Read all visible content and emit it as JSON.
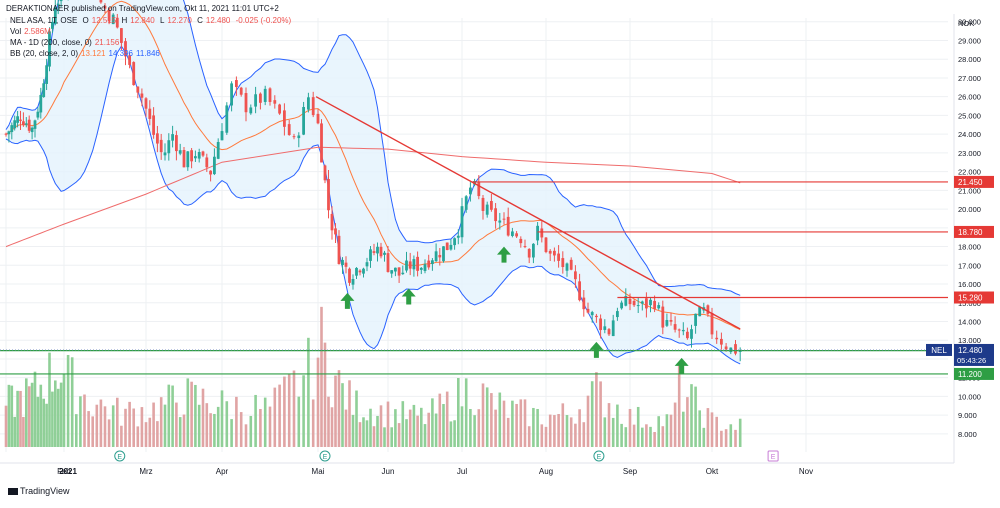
{
  "header": {
    "publish_line": "DERAKTIONAER published on TradingView.com, Okt 11, 2021 11:01 UTC+2"
  },
  "legend": {
    "symbol": "NEL ASA, 1T, OSE",
    "o_label": "O",
    "o_value": "12.515",
    "h_label": "H",
    "h_value": "12.840",
    "l_label": "L",
    "l_value": "12.270",
    "c_label": "C",
    "c_value": "12.480",
    "change": "-0.025 (-0.20%)",
    "vol_label": "Vol",
    "vol_value": "2.586M",
    "ma_label": "MA - 1D (200, close, 0)",
    "ma_value": "21.156",
    "bb_label": "BB (20, close, 2, 0)",
    "bb_basis": "13.121",
    "bb_upper": "14.396",
    "bb_lower": "11.846"
  },
  "footer": {
    "brand": "TradingView"
  },
  "colors": {
    "up": "#26a69a",
    "down": "#ef5350",
    "band_line": "#2962ff",
    "band_fill": "#e3f2fd",
    "ma": "#ef6c6c",
    "basis": "#ff7a3d",
    "level_red": "#e53935",
    "level_green": "#2e9e44",
    "arrow": "#2e9e44",
    "vol_up": "#8fcf97",
    "vol_down": "#e0a4a4",
    "price_tag": "#1e3a8a"
  },
  "chart_data": {
    "type": "candlestick",
    "currency": "NOK",
    "y_ticks": [
      "30.000",
      "29.000",
      "28.000",
      "27.000",
      "26.000",
      "25.000",
      "24.000",
      "23.000",
      "22.000",
      "21.000",
      "20.000",
      "19.000",
      "18.000",
      "17.000",
      "16.000",
      "15.000",
      "14.000",
      "13.000",
      "12.000",
      "11.000",
      "10.000",
      "9.000",
      "8.000"
    ],
    "x_ticks": [
      "2021",
      "Feb",
      "Mrz",
      "Apr",
      "Mai",
      "Jun",
      "Jul",
      "Aug",
      "Sep",
      "Okt",
      "Nov"
    ],
    "ylim": [
      7.3,
      30.2
    ],
    "price_levels": [
      {
        "value": 21.45,
        "label": "21.450",
        "color": "red"
      },
      {
        "value": 18.78,
        "label": "18.780",
        "color": "red"
      },
      {
        "value": 15.28,
        "label": "15.280",
        "color": "red"
      },
      {
        "value": 12.445,
        "label": "12.445",
        "color": "green"
      },
      {
        "value": 11.2,
        "label": "11.200",
        "color": "green"
      }
    ],
    "last_price": {
      "symbol": "NEL",
      "value": 12.48,
      "label": "12.480",
      "countdown": "05:43:26"
    },
    "trendline": {
      "from_month": 3.98,
      "from_value": 26.0,
      "to_month": 9.3,
      "to_value": 13.6
    },
    "support_arrows_month": [
      4.42,
      5.28,
      6.5,
      7.6,
      8.63
    ],
    "earnings_markers": [
      {
        "month": 1.68,
        "label": "E"
      },
      {
        "month": 4.1,
        "label": "E"
      },
      {
        "month": 7.63,
        "label": "E"
      },
      {
        "month": 9.65,
        "label": "E"
      }
    ],
    "price_keypoints": [
      [
        0.0,
        24.0
      ],
      [
        0.25,
        25.0
      ],
      [
        0.45,
        24.3
      ],
      [
        0.6,
        26.0
      ],
      [
        0.72,
        28.5
      ],
      [
        0.85,
        31.0
      ],
      [
        1.0,
        31.5
      ],
      [
        1.25,
        33.0
      ],
      [
        1.45,
        31.0
      ],
      [
        1.62,
        30.0
      ],
      [
        1.8,
        27.5
      ],
      [
        1.95,
        26.0
      ],
      [
        2.1,
        24.0
      ],
      [
        2.22,
        22.8
      ],
      [
        2.35,
        24.0
      ],
      [
        2.5,
        22.5
      ],
      [
        2.65,
        23.0
      ],
      [
        2.85,
        22.0
      ],
      [
        3.0,
        24.5
      ],
      [
        3.1,
        26.5
      ],
      [
        3.25,
        25.5
      ],
      [
        3.45,
        26.0
      ],
      [
        3.6,
        25.0
      ],
      [
        3.75,
        23.5
      ],
      [
        3.9,
        26.0
      ],
      [
        4.0,
        24.5
      ],
      [
        4.08,
        22.0
      ],
      [
        4.15,
        20.0
      ],
      [
        4.3,
        17.5
      ],
      [
        4.45,
        16.5
      ],
      [
        4.6,
        17.0
      ],
      [
        4.75,
        17.5
      ],
      [
        4.88,
        18.0
      ],
      [
        5.0,
        17.0
      ],
      [
        5.15,
        16.5
      ],
      [
        5.3,
        17.0
      ],
      [
        5.45,
        17.0
      ],
      [
        5.6,
        17.5
      ],
      [
        5.8,
        18.0
      ],
      [
        5.95,
        19.0
      ],
      [
        6.05,
        20.5
      ],
      [
        6.12,
        21.4
      ],
      [
        6.25,
        20.0
      ],
      [
        6.4,
        19.5
      ],
      [
        6.55,
        19.0
      ],
      [
        6.7,
        18.5
      ],
      [
        6.8,
        17.8
      ],
      [
        6.9,
        18.8
      ],
      [
        7.05,
        17.5
      ],
      [
        7.2,
        17.0
      ],
      [
        7.35,
        16.0
      ],
      [
        7.5,
        14.5
      ],
      [
        7.62,
        14.0
      ],
      [
        7.75,
        13.5
      ],
      [
        7.85,
        14.8
      ],
      [
        8.0,
        15.0
      ],
      [
        8.15,
        14.8
      ],
      [
        8.3,
        15.1
      ],
      [
        8.4,
        14.0
      ],
      [
        8.55,
        13.5
      ],
      [
        8.7,
        13.0
      ],
      [
        8.8,
        14.2
      ],
      [
        8.9,
        14.5
      ],
      [
        9.0,
        13.5
      ],
      [
        9.1,
        13.0
      ],
      [
        9.2,
        12.5
      ],
      [
        9.3,
        12.48
      ]
    ],
    "volume_keypoints": [
      [
        0.0,
        5.0
      ],
      [
        0.5,
        6.5
      ],
      [
        0.9,
        9.5
      ],
      [
        1.3,
        5.5
      ],
      [
        1.7,
        4.0
      ],
      [
        2.1,
        4.5
      ],
      [
        2.5,
        6.0
      ],
      [
        3.0,
        5.0
      ],
      [
        3.5,
        4.5
      ],
      [
        3.9,
        9.0
      ],
      [
        4.05,
        12.0
      ],
      [
        4.2,
        8.5
      ],
      [
        4.5,
        5.0
      ],
      [
        5.0,
        4.0
      ],
      [
        5.5,
        3.5
      ],
      [
        5.9,
        5.5
      ],
      [
        6.1,
        7.0
      ],
      [
        6.5,
        4.5
      ],
      [
        7.0,
        3.5
      ],
      [
        7.3,
        4.0
      ],
      [
        7.6,
        6.5
      ],
      [
        8.0,
        3.5
      ],
      [
        8.5,
        3.0
      ],
      [
        8.6,
        7.0
      ],
      [
        9.0,
        3.0
      ],
      [
        9.3,
        2.5
      ]
    ]
  }
}
